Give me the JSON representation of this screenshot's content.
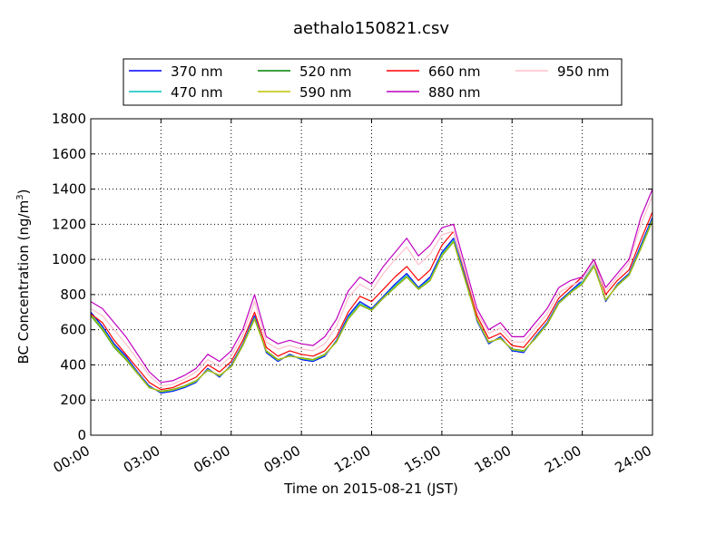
{
  "chart_data": {
    "type": "line",
    "title": "aethalo150821.csv",
    "xlabel": "Time on 2015-08-21 (JST)",
    "ylabel_main": "BC Concentration (ng/m",
    "ylabel_sup": "3",
    "ylabel_close": ")",
    "xlim": [
      0,
      24
    ],
    "ylim": [
      0,
      1800
    ],
    "grid": true,
    "legend_position": "top-center",
    "x_ticks": [
      {
        "value": 0,
        "label": "00:00"
      },
      {
        "value": 3,
        "label": "03:00"
      },
      {
        "value": 6,
        "label": "06:00"
      },
      {
        "value": 9,
        "label": "09:00"
      },
      {
        "value": 12,
        "label": "12:00"
      },
      {
        "value": 15,
        "label": "15:00"
      },
      {
        "value": 18,
        "label": "18:00"
      },
      {
        "value": 21,
        "label": "21:00"
      },
      {
        "value": 24,
        "label": "24:00"
      }
    ],
    "y_ticks": [
      0,
      200,
      400,
      600,
      800,
      1000,
      1200,
      1400,
      1600,
      1800
    ],
    "x": [
      0,
      0.5,
      1,
      1.5,
      2,
      2.5,
      3,
      3.5,
      4,
      4.5,
      5,
      5.5,
      6,
      6.5,
      7,
      7.5,
      8,
      8.5,
      9,
      9.5,
      10,
      10.5,
      11,
      11.5,
      12,
      12.5,
      13,
      13.5,
      14,
      14.5,
      15,
      15.5,
      16,
      16.5,
      17,
      17.5,
      18,
      18.5,
      19,
      19.5,
      20,
      20.5,
      21,
      21.5,
      22,
      22.5,
      23,
      23.5,
      24
    ],
    "series": [
      {
        "name": "370 nm",
        "color": "#0000ff",
        "values": [
          700,
          620,
          520,
          450,
          360,
          280,
          240,
          250,
          270,
          300,
          380,
          330,
          400,
          520,
          680,
          470,
          420,
          460,
          430,
          420,
          450,
          540,
          680,
          760,
          720,
          790,
          860,
          920,
          840,
          900,
          1040,
          1120,
          900,
          650,
          520,
          560,
          480,
          470,
          560,
          640,
          760,
          820,
          880,
          980,
          760,
          860,
          920,
          1080,
          1240
        ]
      },
      {
        "name": "470 nm",
        "color": "#00bfbf",
        "values": [
          690,
          610,
          510,
          440,
          355,
          275,
          245,
          255,
          275,
          305,
          375,
          335,
          395,
          515,
          670,
          475,
          425,
          455,
          435,
          425,
          455,
          535,
          670,
          750,
          715,
          785,
          850,
          910,
          835,
          890,
          1030,
          1110,
          890,
          655,
          525,
          555,
          485,
          475,
          555,
          635,
          755,
          815,
          870,
          970,
          765,
          855,
          915,
          1070,
          1230
        ]
      },
      {
        "name": "520 nm",
        "color": "#008000",
        "values": [
          680,
          600,
          500,
          430,
          350,
          270,
          250,
          260,
          280,
          310,
          370,
          340,
          390,
          510,
          660,
          480,
          430,
          450,
          440,
          430,
          460,
          530,
          660,
          740,
          710,
          780,
          840,
          900,
          830,
          880,
          1020,
          1100,
          880,
          660,
          530,
          550,
          490,
          480,
          550,
          630,
          750,
          810,
          860,
          960,
          770,
          850,
          910,
          1060,
          1220
        ]
      },
      {
        "name": "590 nm",
        "color": "#bfbf00",
        "values": [
          685,
          605,
          505,
          435,
          352,
          272,
          248,
          258,
          278,
          308,
          372,
          338,
          392,
          512,
          662,
          478,
          428,
          452,
          438,
          428,
          458,
          532,
          662,
          742,
          712,
          782,
          842,
          902,
          832,
          882,
          1022,
          1102,
          882,
          658,
          528,
          552,
          488,
          478,
          552,
          632,
          752,
          812,
          862,
          962,
          768,
          852,
          912,
          1062,
          1222
        ]
      },
      {
        "name": "660 nm",
        "color": "#ff0000",
        "values": [
          690,
          640,
          540,
          460,
          380,
          300,
          260,
          270,
          300,
          330,
          400,
          360,
          420,
          540,
          700,
          500,
          450,
          480,
          460,
          450,
          480,
          560,
          700,
          790,
          760,
          830,
          900,
          960,
          880,
          940,
          1080,
          1160,
          920,
          680,
          550,
          580,
          510,
          500,
          580,
          660,
          780,
          840,
          900,
          1000,
          800,
          880,
          940,
          1110,
          1270
        ]
      },
      {
        "name": "880 nm",
        "color": "#bf00bf",
        "values": [
          760,
          720,
          640,
          560,
          460,
          360,
          300,
          310,
          340,
          380,
          460,
          420,
          480,
          600,
          800,
          560,
          520,
          540,
          520,
          510,
          560,
          660,
          820,
          900,
          860,
          960,
          1040,
          1120,
          1020,
          1080,
          1180,
          1200,
          960,
          720,
          600,
          640,
          560,
          560,
          640,
          720,
          840,
          880,
          900,
          1000,
          840,
          920,
          1000,
          1240,
          1400
        ]
      },
      {
        "name": "950 nm",
        "color": "#ffc0cb",
        "values": [
          720,
          680,
          600,
          520,
          430,
          340,
          280,
          290,
          320,
          360,
          430,
          390,
          450,
          570,
          760,
          530,
          490,
          510,
          490,
          480,
          520,
          620,
          780,
          860,
          820,
          920,
          1000,
          1070,
          970,
          1030,
          1140,
          1160,
          930,
          700,
          580,
          610,
          530,
          530,
          610,
          690,
          810,
          850,
          880,
          980,
          820,
          900,
          980,
          1200,
          1360
        ]
      }
    ]
  }
}
